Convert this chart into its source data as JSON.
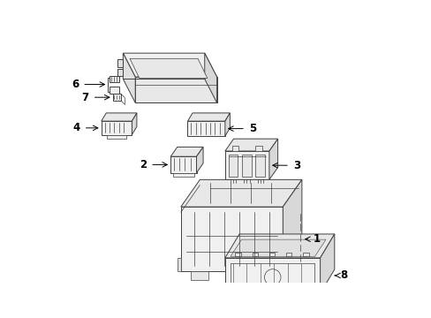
{
  "background_color": "#ffffff",
  "line_color": "#404040",
  "label_color": "#000000",
  "label_fontsize": 8.5,
  "arrow_color": "#000000",
  "lw": 0.7
}
